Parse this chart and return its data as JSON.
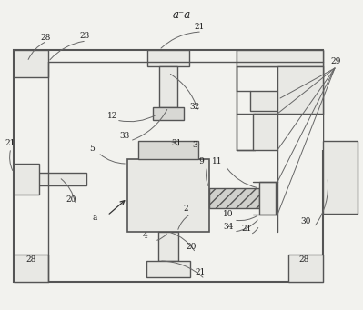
{
  "bg": "#f2f2ee",
  "lc": "#555555",
  "title": "a⁻a",
  "fig_w": 3.99,
  "fig_h": 3.41,
  "dpi": 100
}
